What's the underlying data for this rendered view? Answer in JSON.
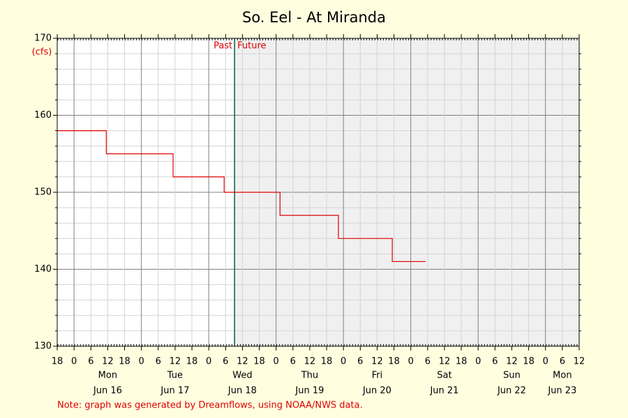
{
  "chart_data": {
    "type": "line",
    "title": "So. Eel - At Miranda",
    "y_label": "(cfs)",
    "note": "Note: graph was generated by Dreamflows, using NOAA/NWS data.",
    "color": "#e00000",
    "x": [
      0,
      17.5,
      17.5,
      41.3,
      41.3,
      59.5,
      59.5,
      79.4,
      79.4,
      100.2,
      100.2,
      119.4,
      119.4,
      131.3
    ],
    "values": [
      158,
      158,
      155,
      155,
      152,
      152,
      150,
      150,
      147,
      147,
      144,
      144,
      141,
      141
    ],
    "now": {
      "value": 63.2,
      "past_label": "Past",
      "future_label": "Future"
    },
    "xlim": [
      0,
      186
    ],
    "xticks": [
      {
        "value": 0,
        "label": "18"
      },
      {
        "value": 6,
        "label": "0"
      },
      {
        "value": 12,
        "label": "6"
      },
      {
        "value": 18,
        "label": "12"
      },
      {
        "value": 24,
        "label": "18"
      },
      {
        "value": 30,
        "label": "0"
      },
      {
        "value": 36,
        "label": "6"
      },
      {
        "value": 42,
        "label": "12"
      },
      {
        "value": 48,
        "label": "18"
      },
      {
        "value": 54,
        "label": "0"
      },
      {
        "value": 60,
        "label": "6"
      },
      {
        "value": 66,
        "label": "12"
      },
      {
        "value": 72,
        "label": "18"
      },
      {
        "value": 78,
        "label": "0"
      },
      {
        "value": 84,
        "label": "6"
      },
      {
        "value": 90,
        "label": "12"
      },
      {
        "value": 96,
        "label": "18"
      },
      {
        "value": 102,
        "label": "0"
      },
      {
        "value": 108,
        "label": "6"
      },
      {
        "value": 114,
        "label": "12"
      },
      {
        "value": 120,
        "label": "18"
      },
      {
        "value": 126,
        "label": "0"
      },
      {
        "value": 132,
        "label": "6"
      },
      {
        "value": 138,
        "label": "12"
      },
      {
        "value": 144,
        "label": "18"
      },
      {
        "value": 150,
        "label": "0"
      },
      {
        "value": 156,
        "label": "6"
      },
      {
        "value": 162,
        "label": "12"
      },
      {
        "value": 168,
        "label": "18"
      },
      {
        "value": 174,
        "label": "0"
      },
      {
        "value": 180,
        "label": "6"
      },
      {
        "value": 186,
        "label": "12"
      }
    ],
    "day_labels": [
      {
        "value": 18,
        "label": "Mon",
        "date": "Jun 16"
      },
      {
        "value": 42,
        "label": "Tue",
        "date": "Jun 17"
      },
      {
        "value": 66,
        "label": "Wed",
        "date": "Jun 18"
      },
      {
        "value": 90,
        "label": "Thu",
        "date": "Jun 19"
      },
      {
        "value": 114,
        "label": "Fri",
        "date": "Jun 20"
      },
      {
        "value": 138,
        "label": "Sat",
        "date": "Jun 21"
      },
      {
        "value": 162,
        "label": "Sun",
        "date": "Jun 22"
      },
      {
        "value": 180,
        "label": "Mon",
        "date": "Jun 23"
      }
    ],
    "ylim": [
      130,
      170
    ],
    "yticks": [
      130,
      140,
      150,
      160,
      170
    ],
    "grid": true
  }
}
